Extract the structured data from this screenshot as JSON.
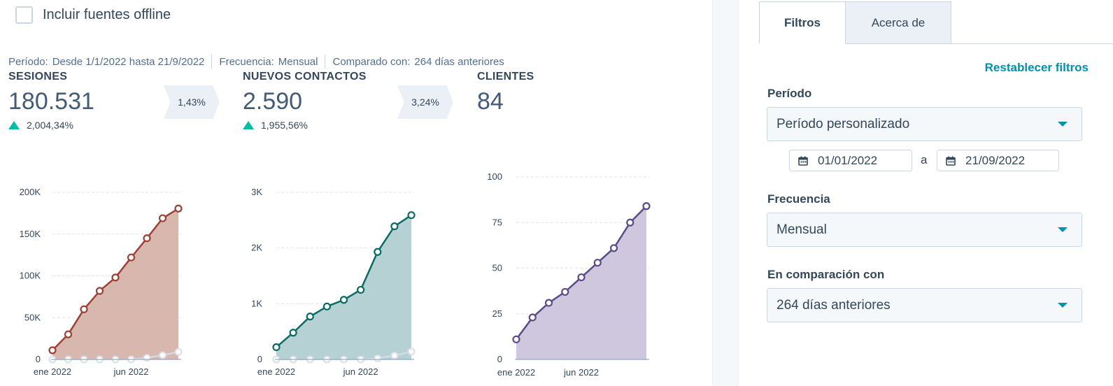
{
  "offline": {
    "label": "Incluir fuentes offline",
    "checked": false
  },
  "meta": {
    "period_key": "Período:",
    "period_value": "Desde 1/1/2022 hasta 21/9/2022",
    "frequency_key": "Frecuencia:",
    "frequency_value": "Mensual",
    "compared_key": "Comparado con:",
    "compared_value": "264 días anteriores"
  },
  "kpis": [
    {
      "title": "SESIONES",
      "value": "180.531",
      "change": "2,004,34%",
      "trend": "up"
    },
    {
      "title": "NUEVOS CONTACTOS",
      "value": "2.590",
      "change": "1,955,56%",
      "trend": "up"
    },
    {
      "title": "CLIENTES",
      "value": "84"
    }
  ],
  "conversions": [
    "1,43%",
    "3,24%"
  ],
  "chart_data": [
    {
      "type": "area",
      "color": "#9b4135",
      "fill": "#d6b3ab",
      "x_tick_labels": [
        "ene 2022",
        "jun 2022"
      ],
      "y_tick_labels": [
        "0",
        "50K",
        "100K",
        "150K",
        "200K"
      ],
      "ylim": [
        0,
        200000
      ],
      "grid": true,
      "series": [
        {
          "values": [
            11000,
            30000,
            60000,
            82000,
            98000,
            122000,
            145000,
            169000,
            180531
          ]
        },
        {
          "values": [
            0,
            0,
            0,
            0,
            0,
            0,
            2000,
            5000,
            9000
          ]
        }
      ]
    },
    {
      "type": "area",
      "color": "#0b6b64",
      "fill": "#b2cfd1",
      "x_tick_labels": [
        "ene 2022",
        "jun 2022"
      ],
      "y_tick_labels": [
        "0",
        "1K",
        "2K",
        "3K"
      ],
      "ylim": [
        0,
        3000
      ],
      "grid": true,
      "series": [
        {
          "values": [
            220,
            480,
            770,
            950,
            1070,
            1250,
            1930,
            2390,
            2590
          ]
        },
        {
          "values": [
            0,
            0,
            0,
            0,
            0,
            0,
            20,
            70,
            140
          ]
        }
      ]
    },
    {
      "type": "area",
      "color": "#5c4a86",
      "fill": "#cbc4dc",
      "x_tick_labels": [
        "ene 2022",
        "jun 2022"
      ],
      "y_tick_labels": [
        "0",
        "25",
        "50",
        "75",
        "100"
      ],
      "ylim": [
        0,
        100
      ],
      "grid": true,
      "series": [
        {
          "values": [
            11,
            23,
            31,
            37,
            45,
            53,
            61,
            75,
            84
          ]
        }
      ]
    }
  ],
  "tabs": [
    {
      "label": "Filtros",
      "active": true
    },
    {
      "label": "Acerca de",
      "active": false
    }
  ],
  "filters": {
    "reset_label": "Restablecer filtros",
    "period_label": "Período",
    "period_value": "Período personalizado",
    "date_from": "01/01/2022",
    "date_sep": "a",
    "date_to": "21/09/2022",
    "frequency_label": "Frecuencia",
    "frequency_value": "Mensual",
    "compare_label": "En comparación con",
    "compare_value": "264 días anteriores"
  },
  "colors": {
    "accent": "#0091ae",
    "positive": "#00bda5"
  }
}
